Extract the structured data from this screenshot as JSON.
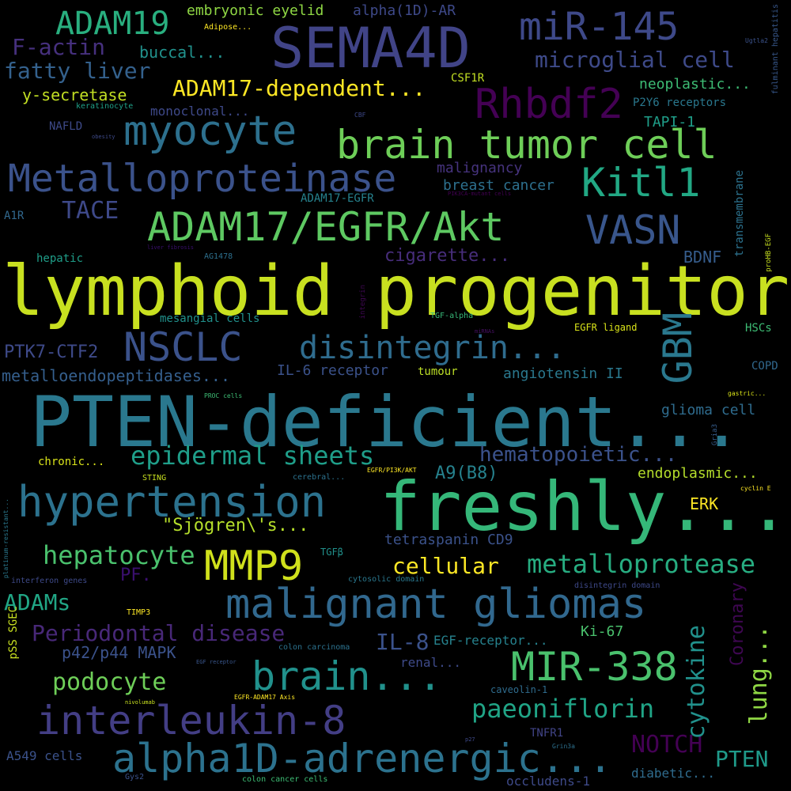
{
  "words": [
    {
      "text": "lymphoid progenitor",
      "color": "#c8e020"
    },
    {
      "text": "PTEN-deficient...",
      "color": "#2a788e"
    },
    {
      "text": "freshly...",
      "color": "#35b779"
    },
    {
      "text": "SEMA4D",
      "color": "#414487"
    },
    {
      "text": "hypertension",
      "color": "#2c728e"
    },
    {
      "text": "malignant gliomas",
      "color": "#31688e"
    },
    {
      "text": "brain tumor cell",
      "color": "#6ece58"
    },
    {
      "text": "ADAM17/EGFR/Akt",
      "color": "#5ec962"
    },
    {
      "text": "alpha1D-adrenergic...",
      "color": "#2c728e"
    },
    {
      "text": "interleukin-8",
      "color": "#433e85"
    },
    {
      "text": "myocyte",
      "color": "#2d708e"
    },
    {
      "text": "Metalloproteinase",
      "color": "#3b528b"
    },
    {
      "text": "MMP9",
      "color": "#d0e11c"
    },
    {
      "text": "brain...",
      "color": "#21918c"
    },
    {
      "text": "miR-145",
      "color": "#3e4989"
    },
    {
      "text": "Rhbdf2",
      "color": "#440154"
    },
    {
      "text": "NSCLC",
      "color": "#3b528b"
    },
    {
      "text": "MIR-338",
      "color": "#4ac16d"
    },
    {
      "text": "disintegrin...",
      "color": "#2f6c8e"
    },
    {
      "text": "GBM",
      "color": "#2a788e"
    },
    {
      "text": "VASN",
      "color": "#39568c"
    },
    {
      "text": "Kitl1",
      "color": "#22a884"
    },
    {
      "text": "ADAM19",
      "color": "#29af7f"
    },
    {
      "text": "epidermal sheets",
      "color": "#1f9e89"
    },
    {
      "text": "metalloprotease",
      "color": "#27ad81"
    },
    {
      "text": "ADAM17-dependent...",
      "color": "#fde725"
    },
    {
      "text": "microglial cell",
      "color": "#3e4a89"
    },
    {
      "text": "fatty liver",
      "color": "#34618d"
    },
    {
      "text": "F-actin",
      "color": "#46307e"
    },
    {
      "text": "hepatocyte",
      "color": "#4ac16d"
    },
    {
      "text": "Periodontal disease",
      "color": "#482878"
    },
    {
      "text": "paeoniflorin",
      "color": "#20a486"
    },
    {
      "text": "podocyte",
      "color": "#6ece58"
    },
    {
      "text": "cellular",
      "color": "#fde725"
    },
    {
      "text": "hematopoietic...",
      "color": "#3b528b"
    },
    {
      "text": "NOTCH",
      "color": "#440154"
    },
    {
      "text": "lung...",
      "color": "#8fd744"
    },
    {
      "text": "cytokine",
      "color": "#21918c"
    },
    {
      "text": "TACE",
      "color": "#3e4989"
    },
    {
      "text": "ADAMs",
      "color": "#21a685"
    },
    {
      "text": "IL-8",
      "color": "#3b528b"
    },
    {
      "text": "\"Sjögren\\'s...",
      "color": "#b5de2b"
    },
    {
      "text": "Coronary",
      "color": "#3e0751"
    },
    {
      "text": "PTEN",
      "color": "#1f9a8a"
    },
    {
      "text": "A9(B8)",
      "color": "#26828e"
    },
    {
      "text": "cigarette...",
      "color": "#472d7b"
    },
    {
      "text": "p42/p44 MAPK",
      "color": "#3b528b"
    },
    {
      "text": "PTK7-CTF2",
      "color": "#3e4a89"
    },
    {
      "text": "metalloendopeptidases...",
      "color": "#355f8d"
    },
    {
      "text": "buccal...",
      "color": "#21918c"
    },
    {
      "text": "y-secretase",
      "color": "#c2df23"
    },
    {
      "text": "glioma cell",
      "color": "#2f6c8e"
    },
    {
      "text": "endoplasmic...",
      "color": "#b5de2b"
    },
    {
      "text": "neoplastic...",
      "color": "#3dbc74"
    },
    {
      "text": "tetraspanin CD9",
      "color": "#3b528b"
    },
    {
      "text": "angiotensin II",
      "color": "#2a788e"
    },
    {
      "text": "IL-6 receptor",
      "color": "#3b528b"
    },
    {
      "text": "embryonic eyelid",
      "color": "#8fd744"
    },
    {
      "text": "alpha(1D)-AR",
      "color": "#3e4989"
    },
    {
      "text": "breast cancer",
      "color": "#2d708e"
    },
    {
      "text": "malignancy",
      "color": "#46337e"
    },
    {
      "text": "Ki-67",
      "color": "#4ac16d"
    },
    {
      "text": "PF.",
      "color": "#3b0f70"
    },
    {
      "text": "BDNF",
      "color": "#365d8d"
    },
    {
      "text": "TAPI-1",
      "color": "#1f9e89"
    },
    {
      "text": "ERK",
      "color": "#fde725"
    },
    {
      "text": "EGF-receptor...",
      "color": "#26828e"
    },
    {
      "text": "renal...",
      "color": "#3e4a89"
    },
    {
      "text": "monoclonal...",
      "color": "#3e4989"
    },
    {
      "text": "mesangial cells",
      "color": "#21918c"
    },
    {
      "text": "hepatic",
      "color": "#1f9e89"
    },
    {
      "text": "CSF1R",
      "color": "#c2df23"
    },
    {
      "text": "HSCs",
      "color": "#3dbc74"
    },
    {
      "text": "transmembrane",
      "color": "#2c728e"
    },
    {
      "text": "A549 cells",
      "color": "#3b528b"
    },
    {
      "text": "occludens-1",
      "color": "#3e4a89"
    },
    {
      "text": "diabetic...",
      "color": "#2f6c8e"
    },
    {
      "text": "chronic...",
      "color": "#d8e219"
    },
    {
      "text": "COPD",
      "color": "#31688e"
    },
    {
      "text": "pSS SGEC",
      "color": "#c8e020"
    },
    {
      "text": "TNFR1",
      "color": "#414487"
    },
    {
      "text": "P2Y6 receptors",
      "color": "#2a788e"
    },
    {
      "text": "A1R",
      "color": "#31688e"
    },
    {
      "text": "NAFLD",
      "color": "#3e4a89"
    },
    {
      "text": "ADAM17-EGFR",
      "color": "#26828e"
    },
    {
      "text": "EGFR ligand",
      "color": "#d8e219"
    },
    {
      "text": "colon carcinoma",
      "color": "#2c728e"
    },
    {
      "text": "cytosolic domain",
      "color": "#2a788e"
    },
    {
      "text": "colon cancer cells",
      "color": "#3dbc74"
    },
    {
      "text": "caveolin-1",
      "color": "#2f6c8e"
    },
    {
      "text": "fulminant hepatitis",
      "color": "#38588c"
    },
    {
      "text": "interferon genes",
      "color": "#3e4a89"
    },
    {
      "text": "disintegrin domain",
      "color": "#3e4989"
    },
    {
      "text": "TGFβ",
      "color": "#21918c"
    },
    {
      "text": "TGF-alpha",
      "color": "#37b878"
    },
    {
      "text": "tumour",
      "color": "#bddf26"
    },
    {
      "text": "AG1478",
      "color": "#2d708e"
    },
    {
      "text": "Adipose...",
      "color": "#fde725"
    },
    {
      "text": "keratinocyte",
      "color": "#1fa088"
    },
    {
      "text": "STING",
      "color": "#c8e020"
    },
    {
      "text": "cerebral...",
      "color": "#2c728e"
    },
    {
      "text": "EGFR/PI3K/AKT",
      "color": "#fde725"
    },
    {
      "text": "cyclin E",
      "color": "#fde725"
    },
    {
      "text": "Gria3",
      "color": "#365d8d"
    },
    {
      "text": "TIMP3",
      "color": "#fde725"
    },
    {
      "text": "Ugtla2",
      "color": "#3b528b"
    },
    {
      "text": "platinum-resistant...",
      "color": "#2a788e"
    },
    {
      "text": "CBF",
      "color": "#3e4989"
    },
    {
      "text": "obesity",
      "color": "#3e4a89"
    },
    {
      "text": "PIK3CA-mutant cells",
      "color": "#440154"
    },
    {
      "text": "liver fibrosis",
      "color": "#3b0f70"
    },
    {
      "text": "integrin",
      "color": "#3e0751"
    },
    {
      "text": "miRNAs",
      "color": "#471063"
    },
    {
      "text": "proHB-EGF",
      "color": "#c8e020"
    },
    {
      "text": "PROC cells",
      "color": "#3dbc74"
    },
    {
      "text": "gastric...",
      "color": "#d8e219"
    },
    {
      "text": "EGF receptor",
      "color": "#39568c"
    },
    {
      "text": "nivolumab",
      "color": "#c8e020"
    },
    {
      "text": "EGFR-ADAM17 Axis",
      "color": "#fde725"
    },
    {
      "text": "p27",
      "color": "#3e4a89"
    },
    {
      "text": "Grin3a",
      "color": "#2d708e"
    },
    {
      "text": "Gys2",
      "color": "#3b528b"
    }
  ]
}
